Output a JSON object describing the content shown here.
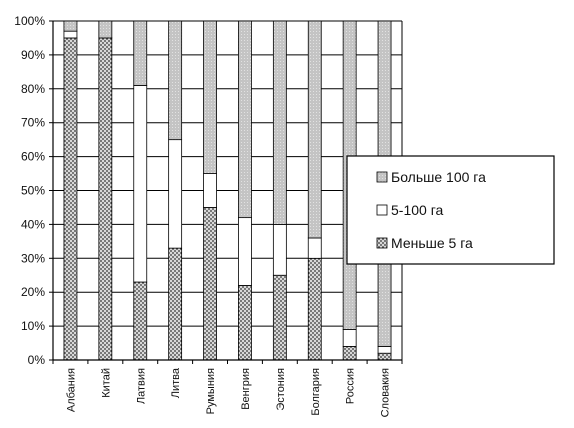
{
  "chart_data": {
    "type": "bar",
    "stacked": true,
    "percent": true,
    "categories": [
      "Албания",
      "Китай",
      "Латвия",
      "Литва",
      "Румыния",
      "Венгрия",
      "Эстония",
      "Болгария",
      "Россия",
      "Словакия"
    ],
    "series": [
      {
        "name": "Меньше 5 га",
        "values": [
          95,
          95,
          23,
          33,
          45,
          22,
          25,
          30,
          4,
          2
        ],
        "pattern": "dots"
      },
      {
        "name": "5-100 га",
        "values": [
          2,
          0,
          58,
          32,
          10,
          20,
          15,
          6,
          5,
          2
        ],
        "pattern": "white"
      },
      {
        "name": "Больше 100 га",
        "values": [
          3,
          5,
          19,
          35,
          45,
          58,
          60,
          64,
          91,
          96
        ],
        "pattern": "gray"
      }
    ],
    "y_ticks": [
      "0%",
      "10%",
      "20%",
      "30%",
      "40%",
      "50%",
      "60%",
      "70%",
      "80%",
      "90%",
      "100%"
    ],
    "ylim": [
      0,
      100
    ],
    "grid": true,
    "legend": {
      "position": "right",
      "entries": [
        "Больше 100 га",
        "5-100 га",
        "Меньше 5 га"
      ]
    },
    "colors": {
      "gray": "#c8c8c8",
      "white": "#ffffff",
      "dots_bg": "#d8d8d8",
      "dots_fg": "#333333",
      "axis": "#000000"
    }
  }
}
